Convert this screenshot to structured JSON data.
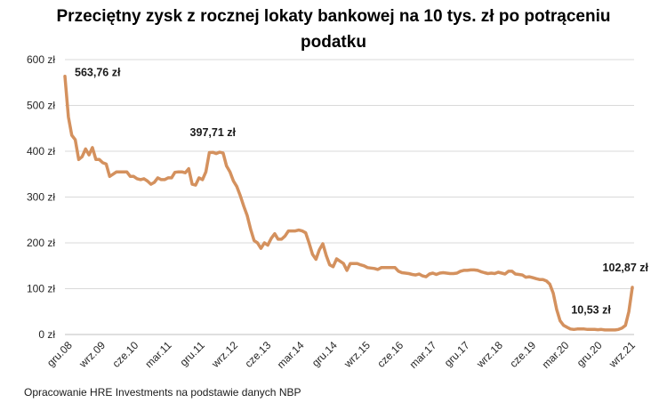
{
  "chart_data": {
    "type": "line",
    "title": "Przeciętny zysk z rocznej lokaty bankowej na 10 tys. zł po potrąceniu podatku",
    "xlabel": "",
    "ylabel": "",
    "ylim": [
      0,
      600
    ],
    "yticks": [
      0,
      100,
      200,
      300,
      400,
      500,
      600
    ],
    "ytick_labels": [
      "0 zł",
      "100 zł",
      "200 zł",
      "300 zł",
      "400 zł",
      "500 zł",
      "600 zł"
    ],
    "xtick_labels": [
      "gru.08",
      "wrz.09",
      "cze.10",
      "mar.11",
      "gru.11",
      "wrz.12",
      "cze.13",
      "mar.14",
      "gru.14",
      "wrz.15",
      "cze.16",
      "mar.17",
      "gru.17",
      "wrz.18",
      "cze.19",
      "mar.20",
      "gru.20",
      "wrz.21"
    ],
    "grid": "horizontal",
    "legend": "none",
    "line_color": "#D4915E",
    "series": [
      {
        "values": [
          563.76,
          475,
          435,
          425,
          382,
          388,
          405,
          392,
          408,
          382,
          382,
          375,
          372,
          345,
          350,
          355,
          355,
          355,
          355,
          345,
          345,
          340,
          338,
          340,
          335,
          328,
          332,
          342,
          338,
          338,
          342,
          342,
          354,
          355,
          355,
          353,
          362,
          328,
          326,
          342,
          338,
          355,
          397,
          397.71,
          395,
          398,
          396,
          368,
          355,
          335,
          323,
          303,
          280,
          260,
          230,
          205,
          200,
          188,
          200,
          195,
          210,
          220,
          208,
          208,
          215,
          226,
          226,
          226,
          228,
          226,
          222,
          200,
          175,
          164,
          185,
          198,
          172,
          152,
          148,
          165,
          160,
          155,
          140,
          155,
          155,
          155,
          152,
          150,
          146,
          145,
          144,
          142,
          146,
          146,
          146,
          146,
          146,
          138,
          135,
          134,
          133,
          131,
          130,
          132,
          128,
          126,
          132,
          134,
          131,
          134,
          135,
          134,
          133,
          133,
          134,
          138,
          140,
          140,
          141,
          141,
          140,
          137,
          135,
          133,
          134,
          133,
          136,
          134,
          132,
          138,
          138,
          132,
          131,
          130,
          125,
          126,
          124,
          122,
          120,
          120,
          117,
          110,
          90,
          55,
          30,
          20,
          16,
          12,
          11,
          12,
          12,
          12,
          11,
          11,
          11,
          10.53,
          11,
          10,
          10,
          10,
          10,
          11,
          14,
          20,
          50,
          102.87
        ]
      }
    ],
    "annotations": [
      {
        "text": "563,76 zł",
        "index": 0,
        "value": 563.76,
        "position": "right"
      },
      {
        "text": "397,71 zł",
        "index": 43,
        "value": 397.71,
        "position": "above"
      },
      {
        "text": "10,53 zł",
        "index": 153,
        "value": 10.53,
        "position": "above"
      },
      {
        "text": "102,87 zł",
        "index": 163,
        "value": 102.87,
        "position": "above"
      }
    ]
  },
  "footer": {
    "source": "Opracowanie HRE Investments na podstawie danych NBP"
  }
}
